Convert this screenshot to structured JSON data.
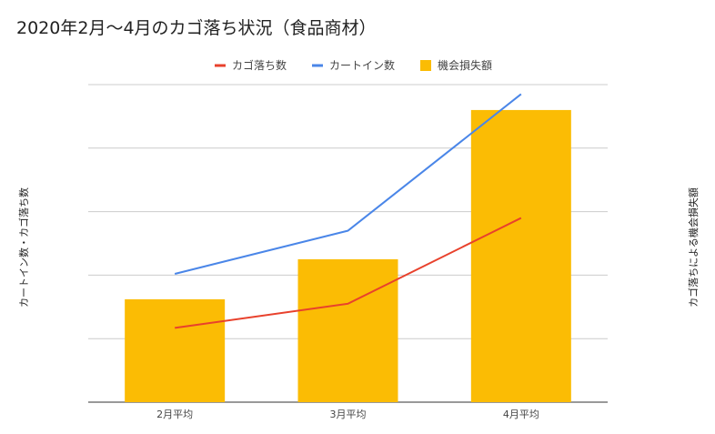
{
  "chart_data": {
    "type": "bar",
    "title": "2020年2月〜4月のカゴ落ち状況（食品商材）",
    "categories": [
      "2月平均",
      "3月平均",
      "4月平均"
    ],
    "y_left_label": "カートイン数・カゴ落ち数",
    "y_right_label": "カゴ落ちによる機会損失額",
    "ylim": [
      0,
      5
    ],
    "grid": true,
    "legend_position": "top-center",
    "series": [
      {
        "name": "カゴ落ち数",
        "type": "line",
        "color": "#e8412c",
        "values": [
          1.17,
          1.55,
          2.9
        ]
      },
      {
        "name": "カートイン数",
        "type": "line",
        "color": "#4a86e8",
        "values": [
          2.02,
          2.7,
          4.85
        ]
      },
      {
        "name": "機会損失額",
        "type": "bar",
        "color": "#fbbc04",
        "values": [
          1.62,
          2.25,
          4.6
        ]
      }
    ]
  }
}
